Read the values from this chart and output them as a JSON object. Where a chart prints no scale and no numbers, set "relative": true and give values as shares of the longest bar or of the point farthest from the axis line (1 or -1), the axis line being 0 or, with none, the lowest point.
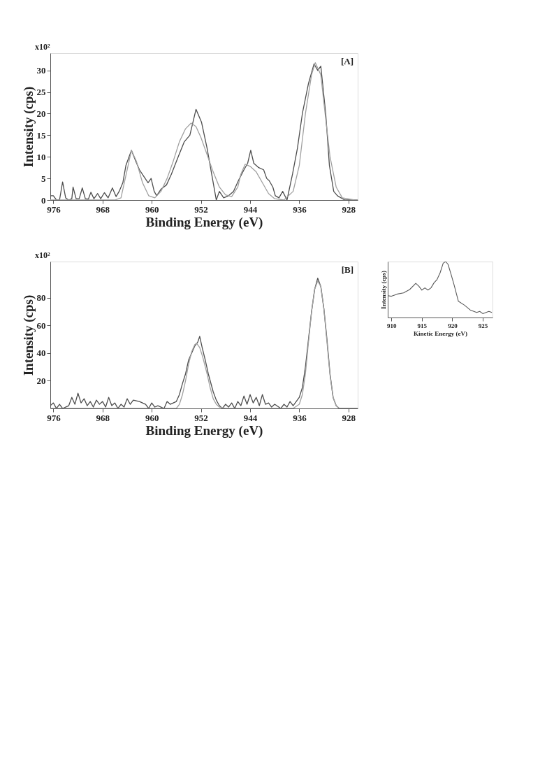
{
  "chart_data": [
    {
      "type": "line",
      "xlabel": "Binding Energy (eV)",
      "ylabel": "Intensity (cps)",
      "annotations": [
        "x10²",
        "[A]"
      ],
      "xlim": [
        976.5,
        926.5
      ],
      "xticks": [
        976,
        968,
        960,
        952,
        944,
        936,
        928
      ],
      "ylim": [
        0,
        34
      ],
      "yticks": [
        0,
        5,
        10,
        15,
        20,
        25,
        30
      ],
      "grid": false,
      "marker": "none",
      "line_style": "solid",
      "series": [
        {
          "color": "#4d4d4d",
          "x": [
            976.5,
            976,
            975.5,
            975,
            974.5,
            974,
            973.5,
            973,
            972.8,
            972.3,
            971.8,
            971.3,
            970.8,
            970.3,
            969.9,
            969.4,
            968.8,
            968.3,
            967.7,
            967.1,
            966.4,
            965.8,
            965.3,
            964.7,
            964.2,
            963.3,
            962.6,
            962,
            961.3,
            960.6,
            960.1,
            959.6,
            959.2,
            958.5,
            957.6,
            956.8,
            955.7,
            954.7,
            953.8,
            952.8,
            951.9,
            951,
            950,
            949.5,
            949,
            948.3,
            947.5,
            946.7,
            945.9,
            945,
            944.4,
            943.9,
            943.4,
            942.6,
            941.8,
            941.3,
            940.9,
            940.3,
            939.9,
            939.3,
            938.7,
            938,
            937.1,
            936.3,
            935.5,
            934.5,
            933.6,
            933,
            932.5,
            931.7,
            931.1,
            930.4,
            929.8,
            928.6,
            926.5
          ],
          "values": [
            1,
            1,
            0,
            0,
            4.2,
            0.5,
            0,
            0.3,
            3,
            0.3,
            0.3,
            2.8,
            0.3,
            0.2,
            1.8,
            0.3,
            1.5,
            0.3,
            1.7,
            0.5,
            2.8,
            0.8,
            2,
            4,
            8,
            11.5,
            9,
            7,
            5.5,
            4,
            5,
            2,
            1,
            2.5,
            3.5,
            6,
            10,
            13.5,
            15,
            21,
            18,
            12,
            4,
            0,
            2,
            0.5,
            1,
            2,
            4.5,
            7,
            8.5,
            11.5,
            8.5,
            7.5,
            7,
            5,
            4.5,
            3,
            1,
            0.5,
            2,
            0,
            6,
            12,
            20,
            27,
            31.5,
            30,
            31,
            20,
            8,
            2,
            1,
            0,
            0
          ]
        },
        {
          "color": "#a0a0a0",
          "x": [
            976.5,
            966,
            965,
            964,
            963.3,
            962.5,
            961.5,
            960.5,
            959.5,
            958.5,
            957.5,
            956.5,
            955.5,
            954.5,
            953.6,
            952.8,
            952,
            951,
            950,
            949,
            948,
            947,
            946,
            945.5,
            944.8,
            944,
            943,
            942,
            941,
            940,
            938.5,
            937,
            936,
            935,
            934,
            933.4,
            932.5,
            931.8,
            931,
            930,
            929,
            927,
            926.5
          ],
          "values": [
            0,
            0,
            0.5,
            7,
            11.5,
            9,
            4,
            1,
            0.5,
            2,
            5,
            9,
            13.5,
            16.5,
            17.8,
            17,
            14.5,
            10.5,
            6.5,
            3,
            1.2,
            0.8,
            3,
            6,
            8.3,
            7.8,
            6.5,
            4,
            1.5,
            0.3,
            0,
            2,
            8,
            20,
            29,
            31.8,
            29,
            20,
            10,
            3,
            0.5,
            0,
            0
          ]
        }
      ]
    },
    {
      "type": "line",
      "xlabel": "Binding Energy (eV)",
      "ylabel": "Intensity (cps)",
      "annotations": [
        "x10²",
        "[B]"
      ],
      "xlim": [
        976.5,
        926.5
      ],
      "xticks": [
        976,
        968,
        960,
        952,
        944,
        936,
        928
      ],
      "ylim": [
        0,
        106
      ],
      "yticks": [
        20,
        40,
        60,
        80
      ],
      "grid": false,
      "marker": "none",
      "line_style": "solid",
      "series": [
        {
          "color": "#4d4d4d",
          "x": [
            976.5,
            976,
            975.5,
            975,
            974.5,
            973.5,
            973,
            972.5,
            972,
            971.5,
            971,
            970.5,
            970,
            969.5,
            969,
            968.5,
            968,
            967.5,
            967,
            966.5,
            966,
            965.5,
            965,
            964.5,
            964,
            963.5,
            963,
            962,
            961,
            960.5,
            960,
            959.5,
            959,
            958,
            957.5,
            957,
            956,
            955.5,
            955,
            954.5,
            954,
            953.5,
            953,
            952.5,
            952.2,
            951.8,
            951.3,
            950.8,
            950,
            949.5,
            949,
            948.5,
            948,
            947.5,
            947,
            946.5,
            946,
            945.5,
            945,
            944.5,
            944,
            943.5,
            943,
            942.5,
            942,
            941.5,
            941,
            940.5,
            940,
            939,
            938.5,
            938,
            937.5,
            937,
            936.5,
            936,
            935.5,
            935,
            934.5,
            934,
            933.5,
            933,
            932.5,
            932,
            931.5,
            931,
            930.5,
            930,
            929.5,
            928,
            926.5
          ],
          "values": [
            2,
            4,
            0,
            3,
            0,
            2,
            8,
            3,
            11,
            4,
            7,
            2,
            5,
            1,
            6,
            3,
            5,
            1,
            8,
            2,
            4,
            0,
            3,
            1,
            7,
            3,
            6,
            5,
            3,
            0,
            4,
            1,
            2,
            0,
            5,
            3,
            5,
            10,
            18,
            25,
            35,
            40,
            45,
            48,
            52,
            44,
            35,
            25,
            12,
            6,
            2,
            0,
            3,
            1,
            4,
            0,
            5,
            2,
            9,
            3,
            10,
            4,
            8,
            2,
            10,
            3,
            4,
            1,
            3,
            0,
            3,
            1,
            5,
            2,
            5,
            8,
            15,
            30,
            50,
            70,
            86,
            94,
            88,
            72,
            50,
            25,
            8,
            2,
            0,
            0,
            0
          ]
        },
        {
          "color": "#a0a0a0",
          "x": [
            976.5,
            956,
            955.5,
            955,
            954.5,
            954,
            953.5,
            953,
            952.7,
            952.2,
            951.7,
            951,
            950.5,
            950,
            949.5,
            949,
            948,
            937,
            936,
            935.5,
            935,
            934.5,
            934,
            933.5,
            933,
            932.5,
            932,
            931.5,
            931,
            930.5,
            930,
            929.5,
            926.5
          ],
          "values": [
            0,
            0,
            3,
            10,
            20,
            32,
            41,
            46,
            47,
            44,
            37,
            25,
            15,
            7,
            3,
            1,
            0,
            0,
            3,
            10,
            25,
            48,
            70,
            86,
            92,
            88,
            72,
            48,
            24,
            8,
            2,
            0,
            0
          ]
        }
      ]
    },
    {
      "type": "line",
      "xlabel": "Kinetic Energy (eV)",
      "ylabel": "Intensity (cps)",
      "relative": true,
      "tick_labels": "x",
      "xlim": [
        909.4,
        926.6
      ],
      "xticks": [
        910,
        915,
        920,
        925
      ],
      "grid": false,
      "marker": "none",
      "line_style": "solid",
      "series": [
        {
          "color": "#5a5a5a",
          "x": [
            909.4,
            910,
            911,
            912,
            913,
            914,
            914.5,
            915,
            915.5,
            916,
            916.5,
            917,
            917.5,
            918,
            918.5,
            918.9,
            919.3,
            919.8,
            920.3,
            921,
            922,
            923,
            924,
            924.5,
            925,
            926,
            926.5
          ],
          "values": [
            0.39,
            0.38,
            0.42,
            0.44,
            0.5,
            0.61,
            0.56,
            0.49,
            0.53,
            0.49,
            0.53,
            0.62,
            0.68,
            0.8,
            0.97,
            1,
            0.95,
            0.77,
            0.58,
            0.29,
            0.22,
            0.13,
            0.09,
            0.11,
            0.07,
            0.11,
            0.09
          ]
        }
      ]
    }
  ]
}
